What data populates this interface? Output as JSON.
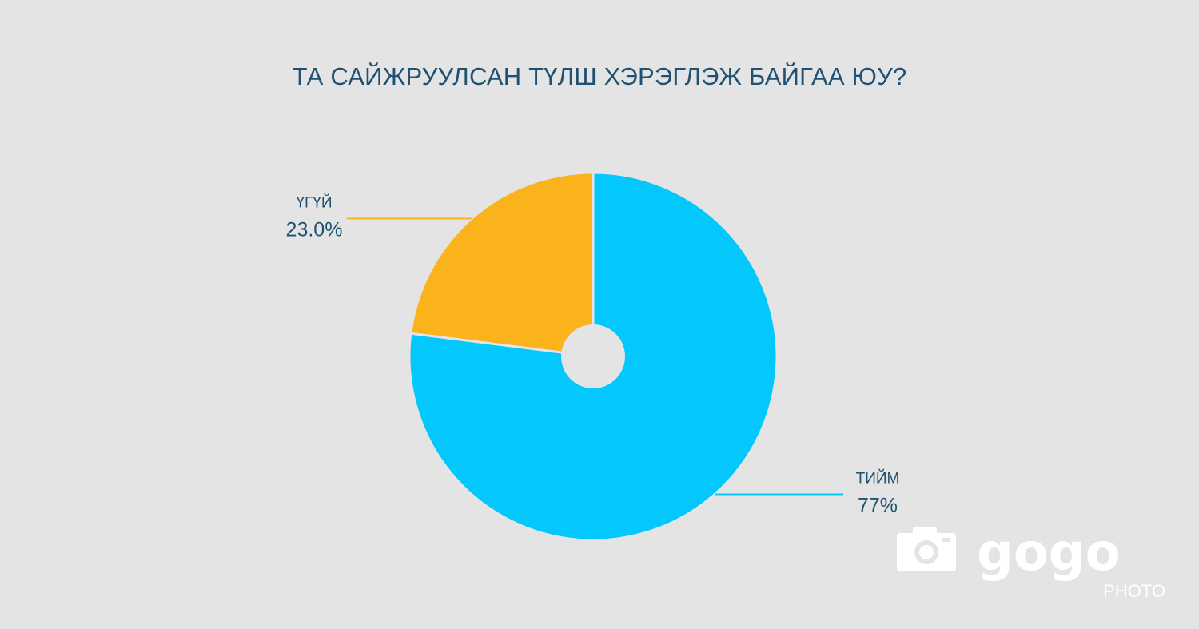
{
  "chart_data": {
    "type": "pie",
    "title": "ТА САЙЖРУУЛСАН ТҮЛШ ХЭРЭГЛЭЖ БАЙГАА ЮУ?",
    "slices": [
      {
        "label": "ТИЙМ",
        "value": 77,
        "value_label": "77%",
        "color": "#04c8fb"
      },
      {
        "label": "ҮГҮЙ",
        "value": 23.0,
        "value_label": "23.0%",
        "color": "#fbb31c"
      }
    ],
    "start_angle_deg": 0,
    "direction": "clockwise",
    "donut_hole": true,
    "label_color": "#1f5272",
    "background_color": "#e4e4e4"
  },
  "watermark": {
    "brand": "gogo",
    "sub": "PHOTO",
    "icon": "camera-icon"
  }
}
